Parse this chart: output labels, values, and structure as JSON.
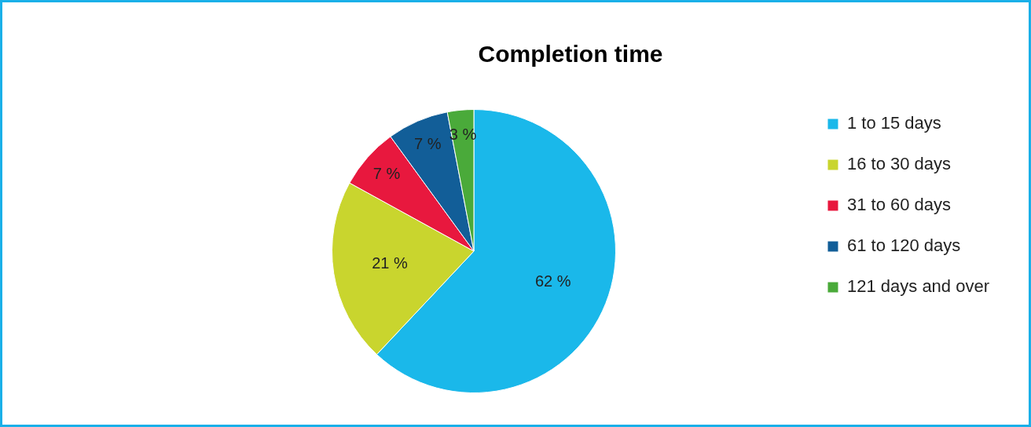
{
  "chart_data": {
    "type": "pie",
    "title": "Completion time",
    "categories": [
      "1 to 15 days",
      "16 to 30 days",
      "31 to 60 days",
      "61 to 120 days",
      "121 days and over"
    ],
    "values": [
      62,
      21,
      7,
      7,
      3
    ],
    "value_labels": [
      "62 %",
      "21 %",
      "7 %",
      "7 %",
      "3 %"
    ],
    "colors": [
      "#1ab8ea",
      "#c9d52e",
      "#e8183e",
      "#125e98",
      "#4aaa3a"
    ],
    "legend": "right"
  }
}
